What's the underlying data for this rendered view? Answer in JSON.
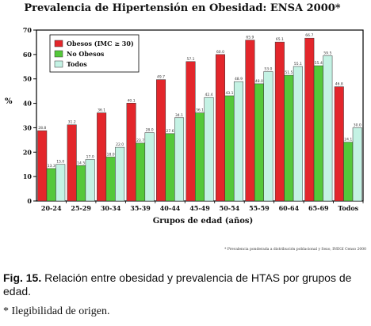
{
  "chart_data": {
    "type": "bar",
    "title": "Prevalencia de Hipertensión en Obesidad: ENSA 2000*",
    "xlabel": "Grupos de edad (años)",
    "ylabel": "%",
    "ylim": [
      0,
      70
    ],
    "yticks": [
      0,
      10,
      20,
      30,
      40,
      50,
      60,
      70
    ],
    "categories": [
      "20-24",
      "25-29",
      "30-34",
      "35-39",
      "40-44",
      "45-49",
      "50-54",
      "55-59",
      "60-64",
      "65-69",
      "Todos"
    ],
    "series": [
      {
        "name": "Obesos (IMC ≥ 30)",
        "color": "#e3262b",
        "values": [
          28.8,
          31.2,
          36.1,
          40.1,
          49.7,
          57.1,
          60.0,
          65.9,
          65.1,
          66.7,
          46.8
        ],
        "labels": [
          "28.8",
          "31.2",
          "36.1",
          "40.1",
          "49.7",
          "57.1",
          "60.0",
          "65.9",
          "65.1",
          "66.7",
          "46.8"
        ]
      },
      {
        "name": "No Obesos",
        "color": "#54c83a",
        "values": [
          13.3,
          14.5,
          18.0,
          23.7,
          27.6,
          36.1,
          43.1,
          48.0,
          51.5,
          55.4,
          24.1
        ],
        "labels": [
          "13.3",
          "14.5",
          "18.0",
          "23.7",
          "27.6",
          "36.1",
          "43.1",
          "48.0",
          "51.5",
          "55.4",
          "24.1"
        ]
      },
      {
        "name": "Todos",
        "color": "#c4f2e4",
        "values": [
          15.0,
          17.0,
          22.0,
          28.0,
          34.1,
          42.4,
          48.9,
          53.0,
          55.1,
          59.5,
          30.0
        ],
        "labels": [
          "15.0",
          "17.0",
          "22.0",
          "28.0",
          "34.1",
          "42.4",
          "48.9",
          "53.0",
          "55.1",
          "59.5",
          "30.0"
        ]
      }
    ],
    "grid": false,
    "legend_position": "top-left",
    "source_note": "* Prevalencia ponderada a distribución poblacional y Sexo, INEGI Censo 2000"
  },
  "caption": {
    "fig_label": "Fig. 15.",
    "text": " Relación entre obesidad y prevalencia de HTAS por grupos de edad."
  },
  "note": "* Ilegibilidad de origen."
}
